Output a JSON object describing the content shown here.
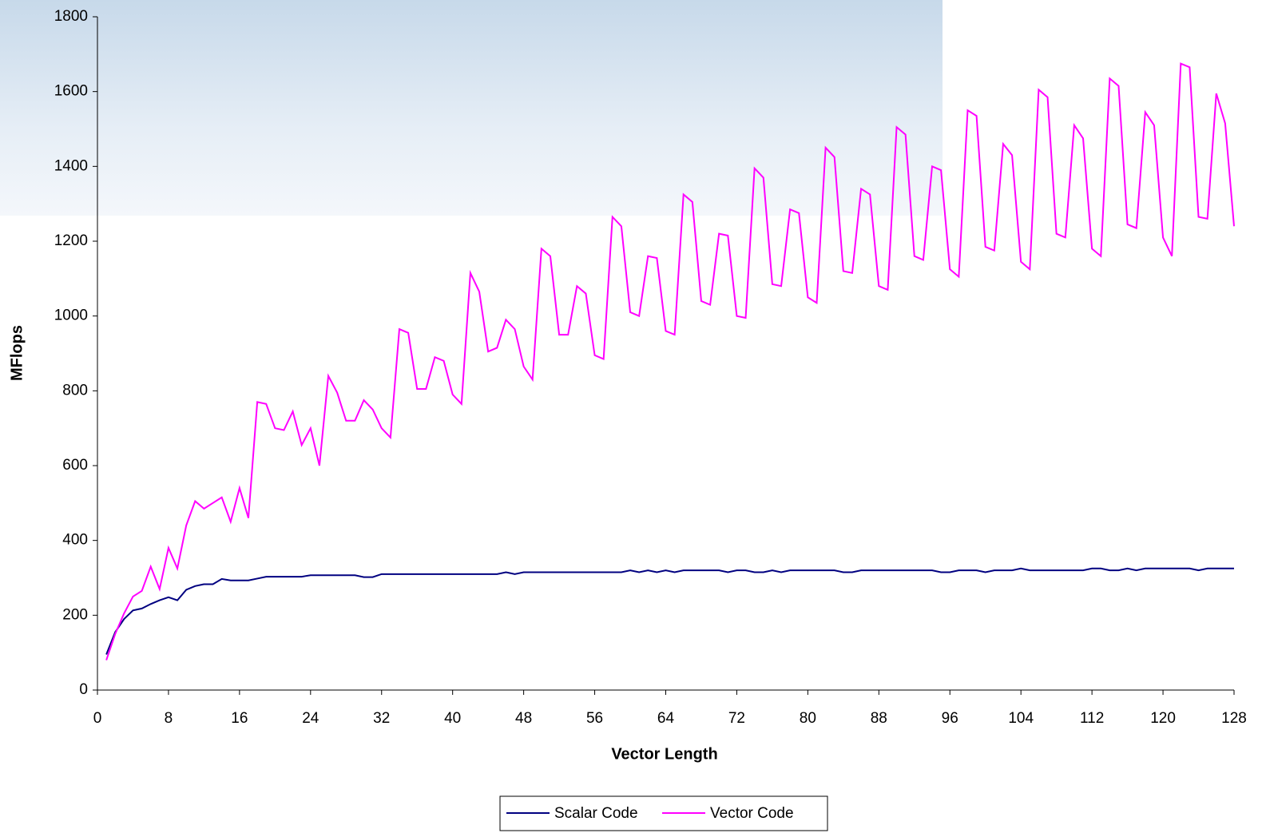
{
  "chart_data": {
    "type": "line",
    "x_label": "Vector Length",
    "y_label": "MFlops",
    "x": [
      1,
      2,
      3,
      4,
      5,
      6,
      7,
      8,
      9,
      10,
      11,
      12,
      13,
      14,
      15,
      16,
      17,
      18,
      19,
      20,
      21,
      22,
      23,
      24,
      25,
      26,
      27,
      28,
      29,
      30,
      31,
      32,
      33,
      34,
      35,
      36,
      37,
      38,
      39,
      40,
      41,
      42,
      43,
      44,
      45,
      46,
      47,
      48,
      49,
      50,
      51,
      52,
      53,
      54,
      55,
      56,
      57,
      58,
      59,
      60,
      61,
      62,
      63,
      64,
      65,
      66,
      67,
      68,
      69,
      70,
      71,
      72,
      73,
      74,
      75,
      76,
      77,
      78,
      79,
      80,
      81,
      82,
      83,
      84,
      85,
      86,
      87,
      88,
      89,
      90,
      91,
      92,
      93,
      94,
      95,
      96,
      97,
      98,
      99,
      100,
      101,
      102,
      103,
      104,
      105,
      106,
      107,
      108,
      109,
      110,
      111,
      112,
      113,
      114,
      115,
      116,
      117,
      118,
      119,
      120,
      121,
      122,
      123,
      124,
      125,
      126,
      127,
      128
    ],
    "series": [
      {
        "name": "Scalar Code",
        "color": "#000080",
        "values": [
          95,
          155,
          190,
          213,
          218,
          230,
          240,
          248,
          240,
          268,
          278,
          283,
          283,
          297,
          293,
          293,
          293,
          298,
          303,
          303,
          303,
          303,
          303,
          307,
          307,
          307,
          307,
          307,
          307,
          302,
          302,
          310,
          310,
          310,
          310,
          310,
          310,
          310,
          310,
          310,
          310,
          310,
          310,
          310,
          310,
          315,
          310,
          315,
          315,
          315,
          315,
          315,
          315,
          315,
          315,
          315,
          315,
          315,
          315,
          320,
          315,
          320,
          315,
          320,
          315,
          320,
          320,
          320,
          320,
          320,
          315,
          320,
          320,
          315,
          315,
          320,
          315,
          320,
          320,
          320,
          320,
          320,
          320,
          315,
          315,
          320,
          320,
          320,
          320,
          320,
          320,
          320,
          320,
          320,
          315,
          315,
          320,
          320,
          320,
          315,
          320,
          320,
          320,
          325,
          320,
          320,
          320,
          320,
          320,
          320,
          320,
          325,
          325,
          320,
          320,
          325,
          320,
          325,
          325,
          325,
          325,
          325,
          325,
          320,
          325,
          325,
          325,
          325
        ]
      },
      {
        "name": "Vector Code",
        "color": "#ff00ff",
        "values": [
          80,
          150,
          205,
          250,
          265,
          330,
          270,
          380,
          325,
          440,
          505,
          485,
          500,
          515,
          450,
          540,
          460,
          770,
          765,
          700,
          695,
          745,
          655,
          700,
          600,
          840,
          795,
          720,
          720,
          775,
          750,
          700,
          675,
          965,
          955,
          805,
          805,
          890,
          880,
          790,
          765,
          1115,
          1065,
          905,
          915,
          990,
          965,
          865,
          830,
          1180,
          1160,
          950,
          950,
          1080,
          1060,
          895,
          885,
          1265,
          1240,
          1010,
          1000,
          1160,
          1155,
          960,
          950,
          1325,
          1305,
          1040,
          1030,
          1220,
          1215,
          1000,
          995,
          1395,
          1370,
          1085,
          1080,
          1285,
          1275,
          1050,
          1035,
          1450,
          1425,
          1120,
          1115,
          1340,
          1325,
          1080,
          1070,
          1505,
          1485,
          1160,
          1150,
          1400,
          1390,
          1125,
          1105,
          1550,
          1535,
          1185,
          1175,
          1460,
          1430,
          1145,
          1125,
          1605,
          1585,
          1220,
          1210,
          1510,
          1475,
          1180,
          1160,
          1635,
          1615,
          1245,
          1235,
          1545,
          1510,
          1210,
          1160,
          1675,
          1665,
          1265,
          1260,
          1595,
          1515,
          1240
        ]
      }
    ],
    "xlim": [
      0,
      128
    ],
    "xticks": [
      0,
      8,
      16,
      24,
      32,
      40,
      48,
      56,
      64,
      72,
      80,
      88,
      96,
      104,
      112,
      120,
      128
    ],
    "ylim": [
      0,
      1800
    ],
    "yticks": [
      0,
      200,
      400,
      600,
      800,
      1000,
      1200,
      1400,
      1600,
      1800
    ],
    "grid": false,
    "legend": "bottom"
  }
}
